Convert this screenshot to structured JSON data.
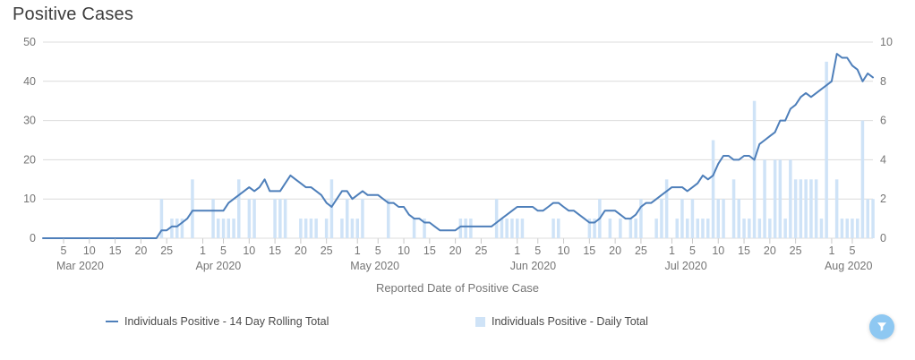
{
  "title": "Positive Cases",
  "colors": {
    "line": "#4e7fba",
    "bars": "#cfe3f7",
    "grid": "#dcdcdc",
    "tick_mark": "#c8c8c8",
    "axis_text": "#757575",
    "title_text": "#3d3d3d",
    "legend_text": "#4a4a4a",
    "filter_button": "#8ec8f2"
  },
  "legend": {
    "items": [
      {
        "label": "Individuals Positive - 14 Day Rolling Total",
        "type": "line"
      },
      {
        "label": "Individuals Positive - Daily Total",
        "type": "bar"
      }
    ]
  },
  "filter_button": {
    "icon": "funnel-filter-icon"
  },
  "chart_data": {
    "type": "line+bar",
    "title": "Positive Cases",
    "xlabel": "Reported Date of Positive Case",
    "start_date": "2020-03-01",
    "end_date": "2020-08-09",
    "grid": "horizontal",
    "legend_position": "bottom",
    "y_left": {
      "ticks": [
        0,
        10,
        20,
        30,
        40,
        50
      ],
      "max": 50
    },
    "y_right": {
      "ticks": [
        0,
        2,
        4,
        6,
        8,
        10
      ],
      "max": 10
    },
    "months": [
      {
        "label": "Mar 2020",
        "start_index": 0,
        "day_ticks": [
          5,
          10,
          15,
          20,
          25
        ]
      },
      {
        "label": "Apr 2020",
        "start_index": 31,
        "day_ticks": [
          1,
          5,
          10,
          15,
          20,
          25
        ]
      },
      {
        "label": "May 2020",
        "start_index": 61,
        "day_ticks": [
          1,
          5,
          10,
          15,
          20,
          25
        ]
      },
      {
        "label": "Jun 2020",
        "start_index": 92,
        "day_ticks": [
          1,
          5,
          10,
          15,
          20,
          25
        ]
      },
      {
        "label": "Jul 2020",
        "start_index": 122,
        "day_ticks": [
          1,
          5,
          10,
          15,
          20,
          25
        ]
      },
      {
        "label": "Aug 2020",
        "start_index": 153,
        "day_ticks": [
          1,
          5
        ]
      }
    ],
    "series": [
      {
        "name": "Individuals Positive - 14 Day Rolling Total",
        "type": "line",
        "axis": "left",
        "values": [
          0,
          0,
          0,
          0,
          0,
          0,
          0,
          0,
          0,
          0,
          0,
          0,
          0,
          0,
          0,
          0,
          0,
          0,
          0,
          0,
          0,
          0,
          0,
          2,
          2,
          3,
          3,
          4,
          5,
          7,
          7,
          7,
          7,
          7,
          7,
          7,
          9,
          10,
          11,
          12,
          13,
          12,
          13,
          15,
          12,
          12,
          12,
          14,
          16,
          15,
          14,
          13,
          13,
          12,
          11,
          9,
          8,
          10,
          12,
          12,
          10,
          11,
          12,
          11,
          11,
          11,
          10,
          9,
          9,
          8,
          8,
          6,
          5,
          5,
          4,
          4,
          3,
          2,
          2,
          2,
          2,
          3,
          3,
          3,
          3,
          3,
          3,
          3,
          4,
          5,
          6,
          7,
          8,
          8,
          8,
          8,
          7,
          7,
          8,
          9,
          9,
          8,
          7,
          7,
          6,
          5,
          4,
          4,
          5,
          7,
          7,
          7,
          6,
          5,
          5,
          6,
          8,
          9,
          9,
          10,
          11,
          12,
          13,
          13,
          13,
          12,
          13,
          14,
          16,
          15,
          16,
          19,
          21,
          21,
          20,
          20,
          21,
          21,
          20,
          24,
          25,
          26,
          27,
          30,
          30,
          33,
          34,
          36,
          37,
          36,
          37,
          38,
          39,
          40,
          47,
          46,
          46,
          44,
          43,
          40,
          42,
          41
        ]
      },
      {
        "name": "Individuals Positive - Daily Total",
        "type": "bar",
        "axis": "right",
        "values": [
          0,
          0,
          0,
          0,
          0,
          0,
          0,
          0,
          0,
          0,
          0,
          0,
          0,
          0,
          0,
          0,
          0,
          0,
          0,
          0,
          0,
          0,
          0,
          2,
          0,
          1,
          1,
          1,
          0,
          3,
          0,
          0,
          0,
          2,
          1,
          1,
          1,
          1,
          3,
          0,
          2,
          2,
          0,
          0,
          0,
          2,
          2,
          2,
          0,
          0,
          1,
          1,
          1,
          1,
          0,
          1,
          3,
          0,
          1,
          2,
          1,
          1,
          2,
          0,
          0,
          0,
          0,
          2,
          0,
          0,
          0,
          0,
          1,
          0,
          1,
          0,
          0,
          0,
          0,
          0,
          0,
          1,
          1,
          1,
          0,
          0,
          0,
          0,
          2,
          1,
          1,
          1,
          1,
          1,
          0,
          0,
          0,
          0,
          0,
          1,
          1,
          0,
          0,
          0,
          0,
          0,
          1,
          1,
          2,
          0,
          1,
          0,
          1,
          0,
          1,
          1,
          2,
          0,
          0,
          1,
          2,
          3,
          0,
          1,
          2,
          1,
          2,
          1,
          1,
          1,
          5,
          2,
          2,
          0,
          3,
          2,
          1,
          1,
          7,
          1,
          4,
          1,
          4,
          4,
          1,
          4,
          3,
          3,
          3,
          3,
          3,
          1,
          9,
          0,
          3,
          1,
          1,
          1,
          1,
          6,
          2,
          2
        ]
      }
    ]
  }
}
